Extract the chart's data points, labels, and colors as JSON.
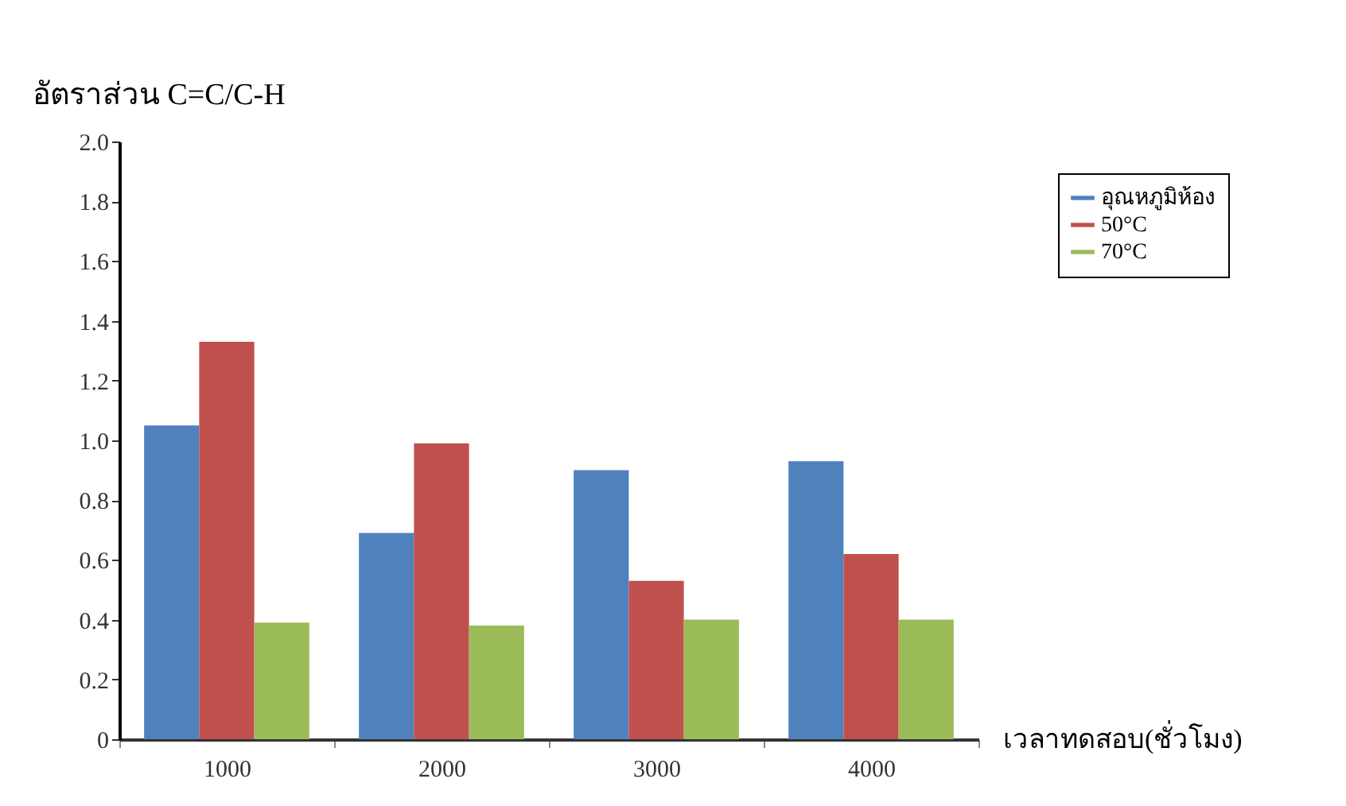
{
  "chart_data": {
    "type": "bar",
    "xlabel": "เวลาทดสอบ(ชั่วโมง)",
    "ylabel": "อัตราส่วน C=C/C-H",
    "categories": [
      "1000",
      "2000",
      "3000",
      "4000"
    ],
    "series": [
      {
        "name": "อุณหภูมิห้อง",
        "color": "#4f81bd",
        "values": [
          1.05,
          0.69,
          0.9,
          0.93
        ]
      },
      {
        "name": "50°C",
        "color": "#c0504d",
        "values": [
          1.33,
          0.99,
          0.53,
          0.62
        ]
      },
      {
        "name": "70°C",
        "color": "#9bbb59",
        "values": [
          0.39,
          0.38,
          0.4,
          0.4
        ]
      }
    ],
    "ylim": [
      0,
      2.0
    ],
    "yticks": [
      0,
      {
        "value": 0.2,
        "label": "0.2"
      },
      {
        "value": 0.4,
        "label": "0.4"
      },
      {
        "value": 0.6,
        "label": "0.6"
      },
      {
        "value": 0.8,
        "label": "0.8"
      },
      {
        "value": 1.0,
        "label": "1.0"
      },
      {
        "value": 1.2,
        "label": "1.2"
      },
      {
        "value": 1.4,
        "label": "1.4"
      },
      {
        "value": 1.6,
        "label": "1.6"
      },
      {
        "value": 1.8,
        "label": "1.8"
      },
      {
        "value": 2.0,
        "label": "2.0"
      }
    ],
    "grid": false,
    "legend": "top right"
  }
}
